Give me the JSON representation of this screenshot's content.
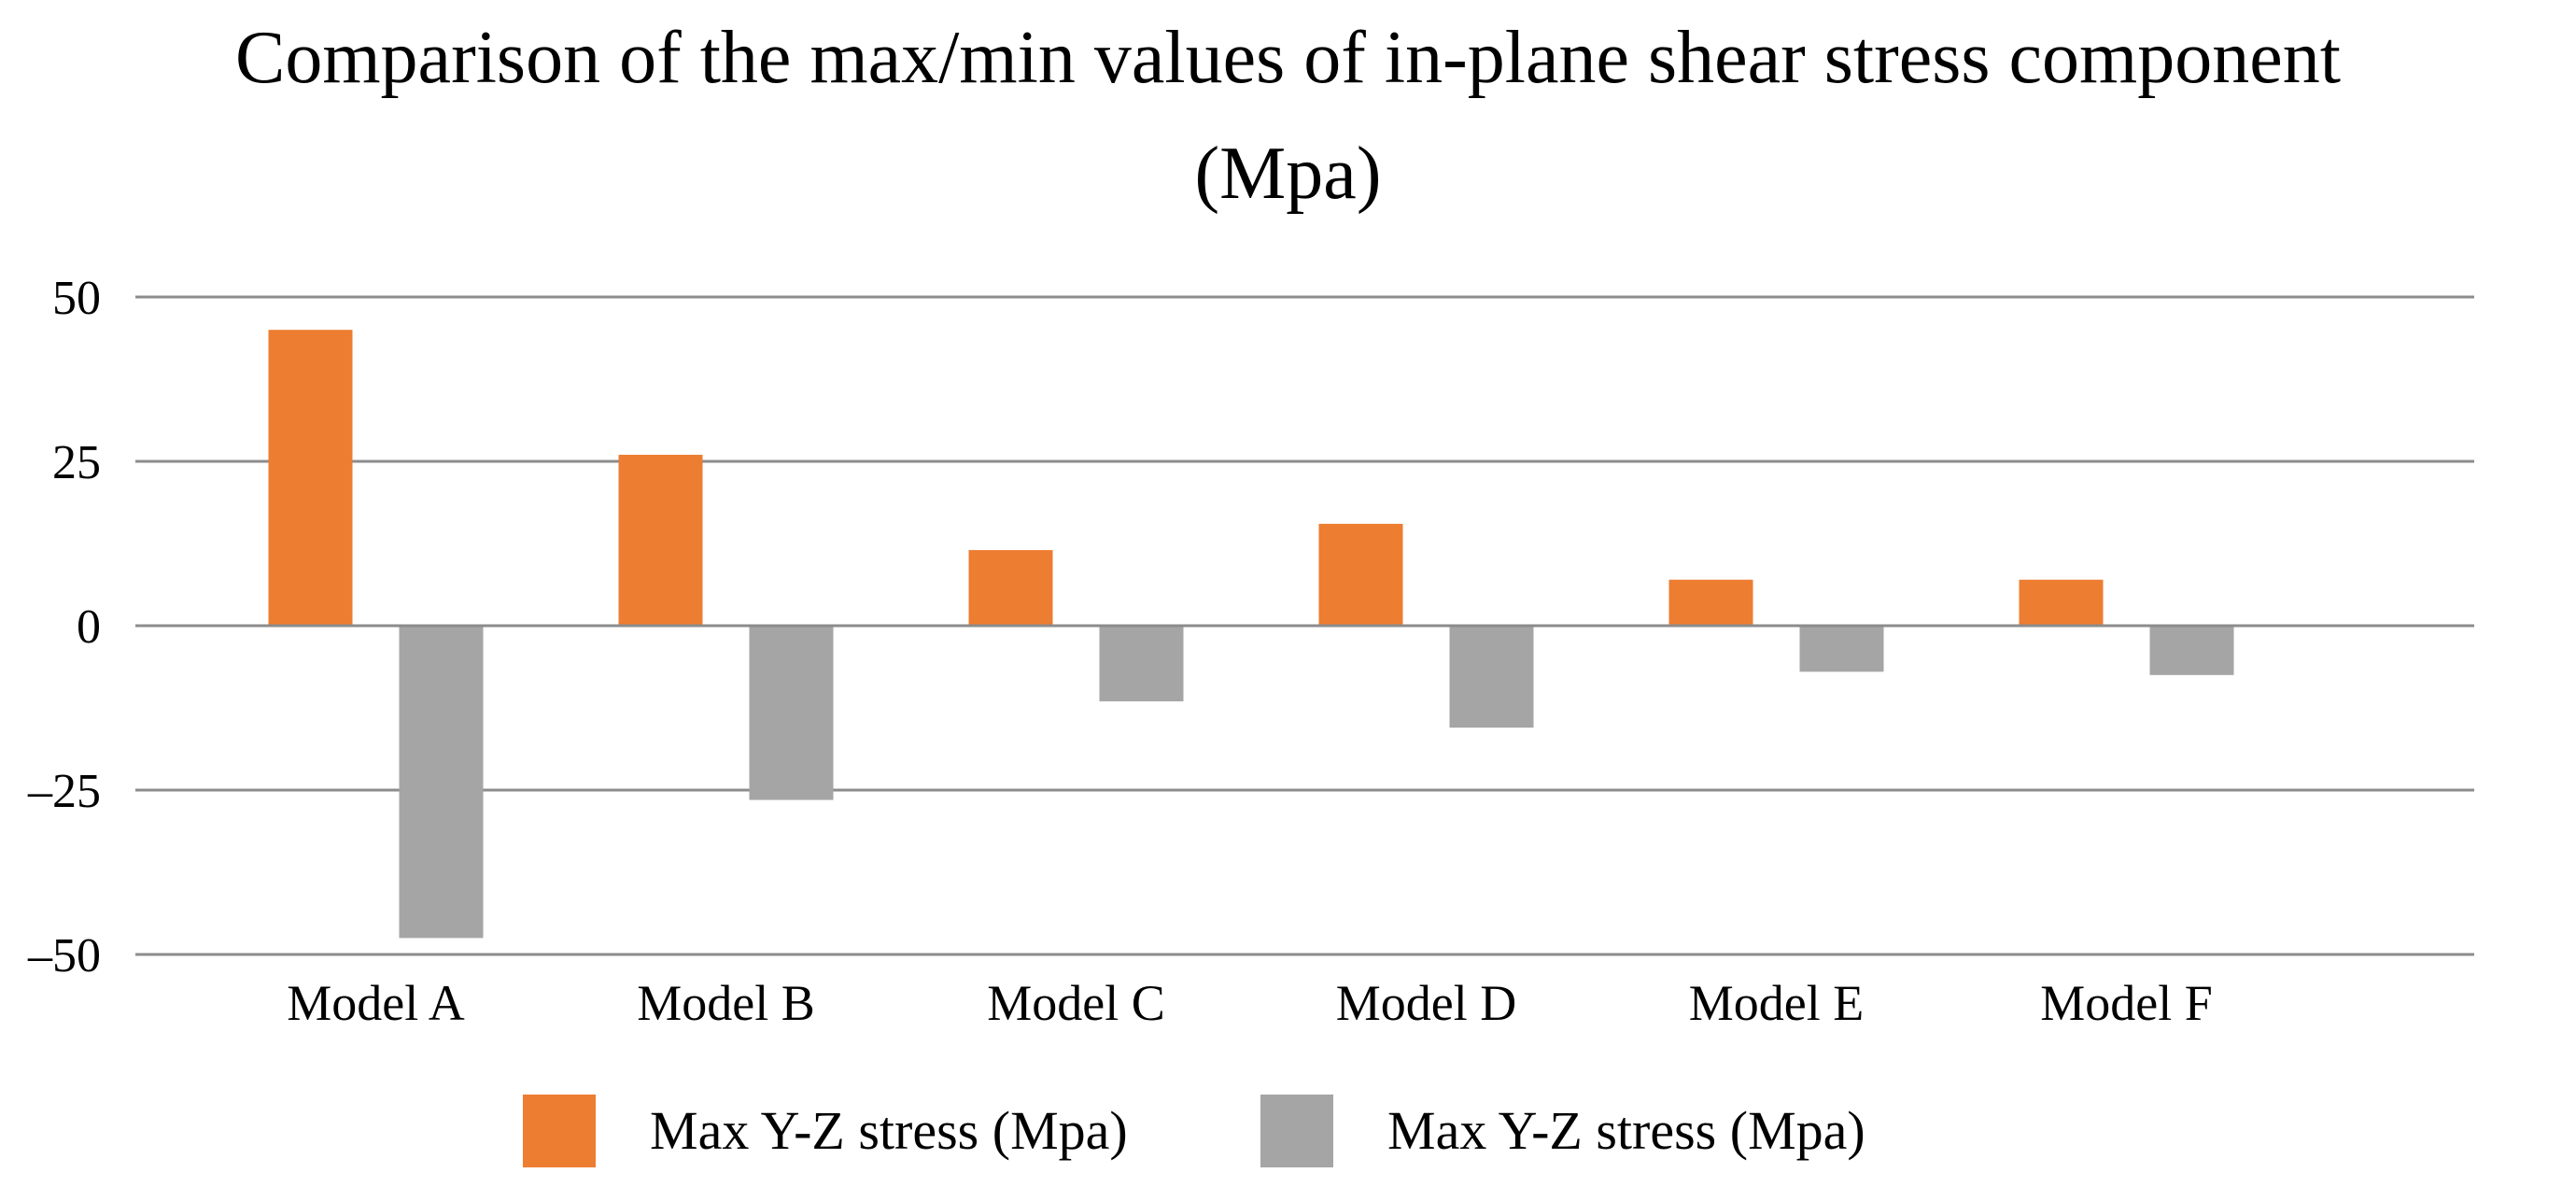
{
  "chart_data": {
    "type": "bar",
    "title": "Comparison of the max/min values of in-plane shear stress component",
    "title_line2": "(Mpa)",
    "categories": [
      "Model A",
      "Model B",
      "Model C",
      "Model D",
      "Model E",
      "Model F"
    ],
    "series": [
      {
        "name": "Max Y-Z stress (Mpa)",
        "color": "#ED7D31",
        "values": [
          45,
          26,
          11.5,
          15.5,
          7,
          7
        ]
      },
      {
        "name": "Max Y-Z stress (Mpa)",
        "color": "#A5A5A5",
        "values": [
          -47.5,
          -26.5,
          -11.5,
          -15.5,
          -7,
          -7.5
        ]
      }
    ],
    "y_ticks": [
      {
        "value": 50,
        "label": "50"
      },
      {
        "value": 25,
        "label": "25"
      },
      {
        "value": 0,
        "label": "0"
      },
      {
        "value": -25,
        "label": "–25"
      },
      {
        "value": -50,
        "label": "–50"
      }
    ],
    "ylim": [
      -50,
      50
    ],
    "xlabel": "",
    "ylabel": "",
    "grid": true,
    "legend_position": "bottom"
  }
}
